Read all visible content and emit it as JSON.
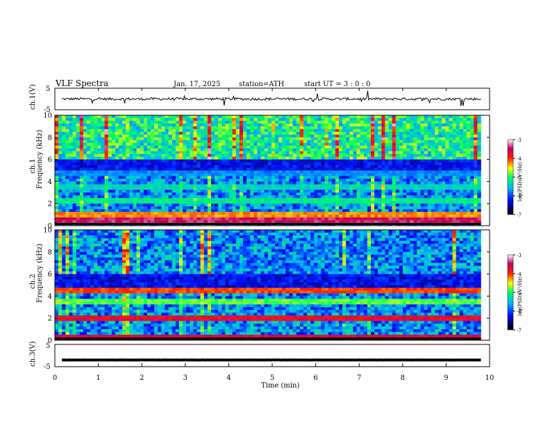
{
  "header": {
    "title": "VLF  Spectra",
    "date": "Jan. 17, 2025",
    "station": "station=ATH",
    "start": "start  UT  =     3  : 0   : 0"
  },
  "chart_data": [
    {
      "type": "line",
      "id": "ch1",
      "ylabel": "ch.1(V)",
      "ylim": [
        -5,
        5
      ],
      "y_ticks": [
        "5",
        "-5"
      ],
      "xlim": [
        0,
        10
      ],
      "baseline": 0
    },
    {
      "type": "heatmap",
      "id": "ch1_spec",
      "ylabel_top": "ch.1",
      "ylabel": "Frequency  (kHz)",
      "ylim": [
        0,
        10
      ],
      "y_ticks": [
        "0",
        "2",
        "4",
        "6",
        "8",
        "10"
      ],
      "xlim": [
        0,
        9.8
      ],
      "colorbar": {
        "label": "log(PSD)(V²/Hz)",
        "range": [
          -7,
          -3
        ],
        "ticks": [
          "-3",
          "-4",
          "-5",
          "-6",
          "-7"
        ]
      },
      "bands": [
        {
          "f": 0.5,
          "level": -3.6
        },
        {
          "f": 1.0,
          "level": -4.4
        },
        {
          "f": 2.2,
          "level": -5.3
        },
        {
          "f": 3.6,
          "level": -5.5
        },
        {
          "f": 4.8,
          "level": -5.9
        }
      ]
    },
    {
      "type": "heatmap",
      "id": "ch2_spec",
      "ylabel_top": "ch.2",
      "ylabel": "Frequency  (kHz)",
      "ylim": [
        0,
        10
      ],
      "y_ticks": [
        "0",
        "2",
        "4",
        "6",
        "8",
        "10"
      ],
      "xlim": [
        0,
        9.8
      ],
      "colorbar": {
        "label": "log(PSD)(V²/Hz)",
        "range": [
          -7,
          -3
        ],
        "ticks": [
          "-3",
          "-4",
          "-5",
          "-6",
          "-7"
        ]
      },
      "bands": [
        {
          "f": 0.3,
          "level": -3.8
        },
        {
          "f": 2.0,
          "level": -3.9
        },
        {
          "f": 3.5,
          "level": -5.0
        },
        {
          "f": 4.5,
          "level": -4.2
        }
      ]
    },
    {
      "type": "line",
      "id": "ch3",
      "ylabel": "ch.3(V)",
      "ylim": [
        -5,
        5
      ],
      "y_ticks": [
        "5",
        "-5"
      ],
      "xlim": [
        0,
        10
      ],
      "baseline": -2,
      "xlabel": "Time  (min)",
      "x_ticks": [
        "0",
        "1",
        "2",
        "3",
        "4",
        "5",
        "6",
        "7",
        "8",
        "9",
        "10"
      ]
    }
  ],
  "colors": {
    "axis": "#000000",
    "trace": "#000000"
  }
}
